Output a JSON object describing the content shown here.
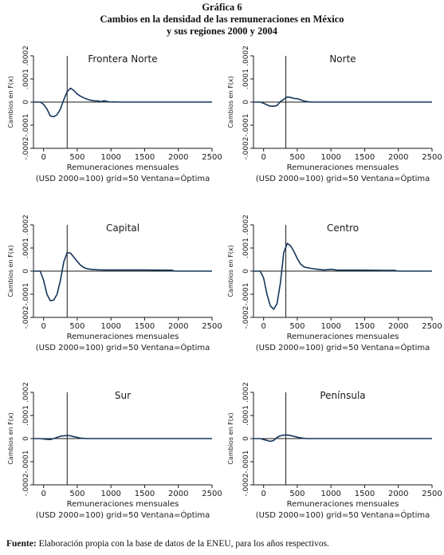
{
  "figure": {
    "label": "Gráfica 6",
    "title_line1": "Cambios en la densidad de las remuneraciones en México",
    "title_line2": "y sus regiones 2000 y 2004"
  },
  "source": {
    "label": "Fuente:",
    "text": " Elaboración propia con la base de datos de la ENEU, para los años respectivos."
  },
  "chart_data": [
    {
      "type": "line",
      "title": "Frontera Norte",
      "xlabel": "Remuneraciones mensuales",
      "xnote": "(USD 2000=100) grid=50 Ventana=Óptima",
      "ylabel": "Cambios en F(x)",
      "xlim": [
        -150,
        2500
      ],
      "ylim": [
        -0.0002,
        0.0002
      ],
      "xticks": [
        0,
        500,
        1000,
        1500,
        2000,
        2500
      ],
      "yticks": [
        "-.0002",
        "-.0001",
        "0",
        ".0001",
        ".0002"
      ],
      "vline": 350,
      "x": [
        -150,
        -50,
        0,
        50,
        100,
        150,
        200,
        250,
        300,
        350,
        400,
        450,
        500,
        550,
        600,
        650,
        700,
        750,
        800,
        850,
        900,
        950,
        1000,
        1050,
        1100,
        1500,
        2000,
        2500
      ],
      "y": [
        0,
        0,
        -1e-05,
        -3e-05,
        -6e-05,
        -6.3e-05,
        -5.5e-05,
        -3e-05,
        1e-05,
        4.5e-05,
        6e-05,
        5e-05,
        3.5e-05,
        2.5e-05,
        1.8e-05,
        1.2e-05,
        8e-06,
        5e-06,
        5e-06,
        2e-06,
        6e-06,
        2e-06,
        0,
        1e-06,
        0,
        0,
        0,
        0
      ]
    },
    {
      "type": "line",
      "title": "Norte",
      "xlabel": "Remuneraciones mensuales",
      "xnote": "(USD 2000=100) grid=50 Ventana=Óptima",
      "ylabel": "Cambios en F(x)",
      "xlim": [
        -150,
        2500
      ],
      "ylim": [
        -0.0002,
        0.0002
      ],
      "xticks": [
        0,
        500,
        1000,
        1500,
        2000,
        2500
      ],
      "yticks": [
        "-.0002",
        "-.0001",
        "0",
        ".0001",
        ".0002"
      ],
      "vline": 330,
      "x": [
        -150,
        -50,
        0,
        50,
        100,
        150,
        200,
        250,
        300,
        350,
        400,
        450,
        500,
        550,
        600,
        650,
        700,
        750,
        1000,
        1500,
        2000,
        2500
      ],
      "y": [
        0,
        0,
        -5e-06,
        -1.2e-05,
        -1.8e-05,
        -1.8e-05,
        -1.5e-05,
        2e-06,
        1.2e-05,
        2.2e-05,
        2e-05,
        1.6e-05,
        1.5e-05,
        1e-05,
        4e-06,
        2e-06,
        0,
        0,
        0,
        0,
        0,
        0
      ]
    },
    {
      "type": "line",
      "title": "Capital",
      "xlabel": "Remuneraciones mensuales",
      "xnote": "(USD 2000=100) grid=50 Ventana=Óptima",
      "ylabel": "Cambios en F(x)",
      "xlim": [
        -150,
        2500
      ],
      "ylim": [
        -0.0002,
        0.0002
      ],
      "xticks": [
        0,
        500,
        1000,
        1500,
        2000,
        2500
      ],
      "yticks": [
        "-.0002",
        "-.0001",
        "0",
        ".0001",
        ".0002"
      ],
      "vline": 350,
      "x": [
        -150,
        -50,
        0,
        50,
        100,
        150,
        200,
        250,
        300,
        350,
        400,
        450,
        500,
        550,
        600,
        650,
        700,
        800,
        900,
        1000,
        1200,
        1500,
        1800,
        1900,
        1950,
        2000,
        2500
      ],
      "y": [
        0,
        0,
        -4e-05,
        -0.0001,
        -0.000128,
        -0.000125,
        -0.0001,
        -4e-05,
        4e-05,
        8e-05,
        7.8e-05,
        6e-05,
        4.2e-05,
        2.5e-05,
        1.5e-05,
        1e-05,
        8e-06,
        6e-06,
        5e-06,
        5e-06,
        5e-06,
        5e-06,
        4e-06,
        4e-06,
        0,
        0,
        0
      ]
    },
    {
      "type": "line",
      "title": "Centro",
      "xlabel": "Remuneraciones mensuales",
      "xnote": "(USD 2000=100) grid=50 Ventana=Óptima",
      "ylabel": "Cambios en F(x)",
      "xlim": [
        -150,
        2500
      ],
      "ylim": [
        -0.0002,
        0.0002
      ],
      "xticks": [
        0,
        500,
        1000,
        1500,
        2000,
        2500
      ],
      "yticks": [
        "-.0002",
        "-.0001",
        "0",
        ".0001",
        ".0002"
      ],
      "vline": 330,
      "x": [
        -150,
        -50,
        0,
        50,
        100,
        150,
        200,
        250,
        300,
        350,
        400,
        450,
        500,
        550,
        600,
        700,
        800,
        900,
        1000,
        1100,
        1200,
        1500,
        1800,
        1950,
        2000,
        2500
      ],
      "y": [
        0,
        0,
        -3e-05,
        -0.0001,
        -0.00015,
        -0.000165,
        -0.00014,
        -5e-05,
        8e-05,
        0.00012,
        0.00011,
        8.5e-05,
        5.5e-05,
        3e-05,
        1.8e-05,
        1.2e-05,
        8e-06,
        5e-06,
        8e-06,
        4e-06,
        4e-06,
        4e-06,
        3e-06,
        3e-06,
        0,
        0
      ]
    },
    {
      "type": "line",
      "title": "Sur",
      "xlabel": "Remuneraciones mensuales",
      "xnote": "(USD 2000=100) grid=50 Ventana=Óptima",
      "ylabel": "Cambios en F(x)",
      "xlim": [
        -150,
        2500
      ],
      "ylim": [
        -0.0002,
        0.0002
      ],
      "xticks": [
        0,
        500,
        1000,
        1500,
        2000,
        2500
      ],
      "yticks": [
        "-.0002",
        "-.0001",
        "0",
        ".0001",
        ".0002"
      ],
      "vline": 350,
      "x": [
        -150,
        -50,
        0,
        50,
        100,
        150,
        200,
        250,
        300,
        350,
        400,
        450,
        500,
        550,
        600,
        650,
        1000,
        1500,
        2000,
        2500
      ],
      "y": [
        0,
        0,
        -2e-06,
        -3e-06,
        -4e-06,
        0,
        5e-06,
        1e-05,
        1.2e-05,
        1.3e-05,
        1.2e-05,
        8e-06,
        5e-06,
        2e-06,
        1e-06,
        0,
        0,
        0,
        0,
        0
      ]
    },
    {
      "type": "line",
      "title": "Península",
      "xlabel": "Remuneraciones mensuales",
      "xnote": "(USD 2000=100) grid=50 Ventana=Óptima",
      "ylabel": "Cambios en F(x)",
      "xlim": [
        -150,
        2500
      ],
      "ylim": [
        -0.0002,
        0.0002
      ],
      "xticks": [
        0,
        500,
        1000,
        1500,
        2000,
        2500
      ],
      "yticks": [
        "-.0002",
        "-.0001",
        "0",
        ".0001",
        ".0002"
      ],
      "vline": 330,
      "x": [
        -150,
        -50,
        0,
        50,
        100,
        150,
        200,
        250,
        300,
        350,
        400,
        450,
        500,
        550,
        600,
        650,
        700,
        1000,
        1500,
        2000,
        2500
      ],
      "y": [
        0,
        0,
        -4e-06,
        -8e-06,
        -1.2e-05,
        -8e-06,
        5e-06,
        1.2e-05,
        1.5e-05,
        1.5e-05,
        1.3e-05,
        1e-05,
        6e-06,
        3e-06,
        1e-06,
        0,
        0,
        0,
        0,
        0,
        0
      ]
    }
  ]
}
